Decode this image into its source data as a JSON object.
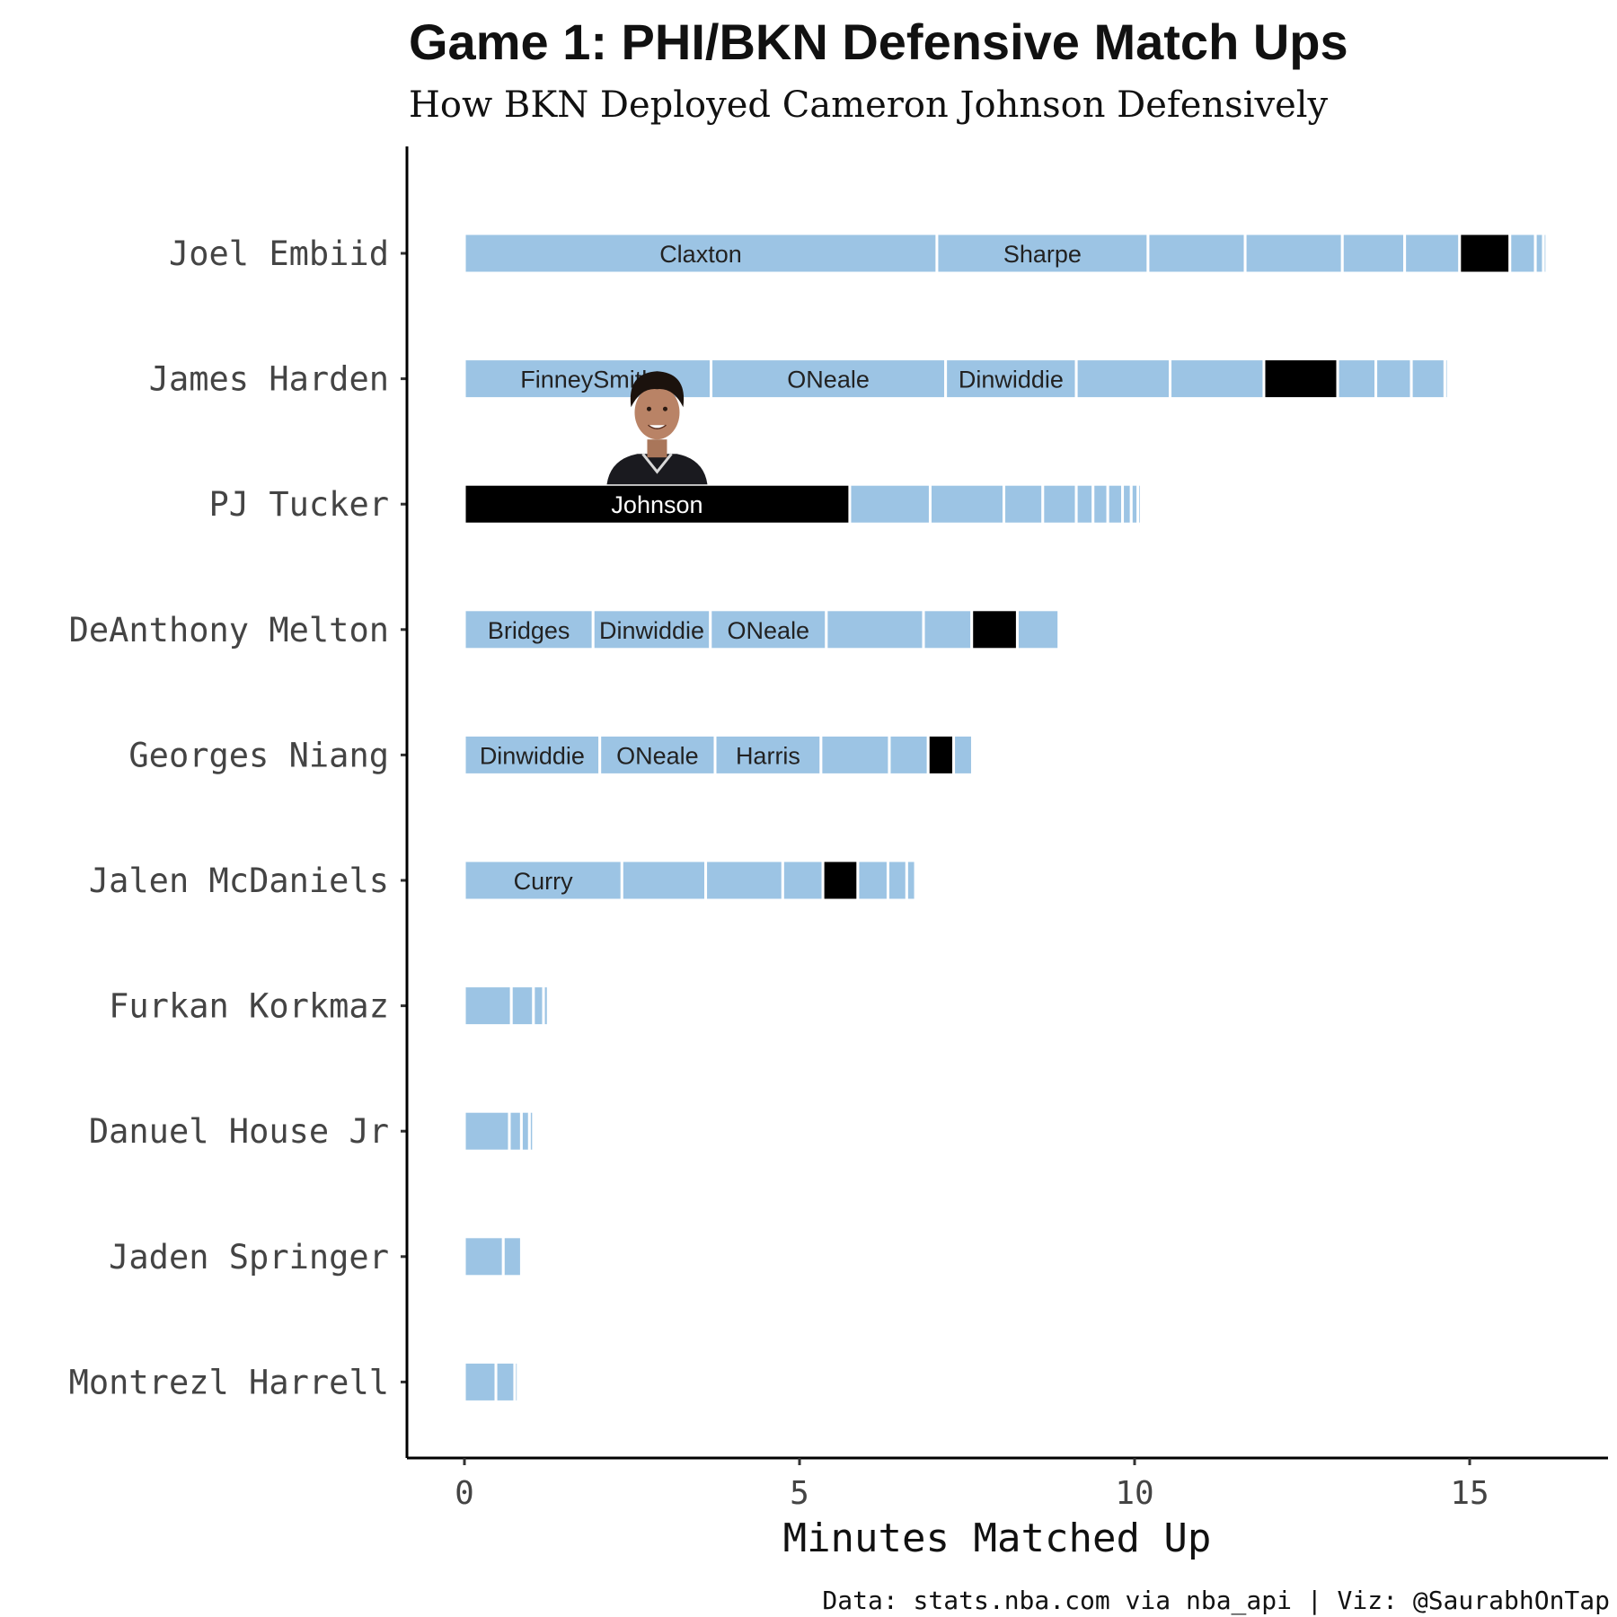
{
  "chart_data": {
    "type": "bar",
    "orientation": "horizontal-stacked",
    "title": "Game 1: PHI/BKN Defensive Match Ups",
    "subtitle": "How BKN Deployed Cameron Johnson Defensively",
    "xlabel": "Minutes Matched Up",
    "ylabel": "",
    "xlim": [
      0,
      17
    ],
    "xticks": [
      0,
      5,
      10,
      15
    ],
    "caption": "Data: stats.nba.com via nba_api | Viz: @SaurabhOnTap",
    "highlight_player": "Johnson",
    "colors": {
      "default": "#9CC4E4",
      "highlight": "#000000"
    },
    "rows": [
      {
        "player": "Joel Embiid",
        "segments": [
          {
            "label": "Claxton",
            "minutes": 7.05
          },
          {
            "label": "Sharpe",
            "minutes": 3.15
          },
          {
            "label": "",
            "minutes": 1.45
          },
          {
            "label": "",
            "minutes": 1.45
          },
          {
            "label": "",
            "minutes": 0.93
          },
          {
            "label": "",
            "minutes": 0.82
          },
          {
            "label": "Johnson",
            "minutes": 0.75,
            "highlight": true,
            "show_label": false
          },
          {
            "label": "",
            "minutes": 0.38
          },
          {
            "label": "",
            "minutes": 0.12
          },
          {
            "label": "",
            "minutes": 0.05
          }
        ]
      },
      {
        "player": "James Harden",
        "segments": [
          {
            "label": "FinneySmith",
            "minutes": 3.68
          },
          {
            "label": "ONeale",
            "minutes": 3.5
          },
          {
            "label": "Dinwiddie",
            "minutes": 1.95
          },
          {
            "label": "",
            "minutes": 1.4
          },
          {
            "label": "",
            "minutes": 1.4
          },
          {
            "label": "Johnson",
            "minutes": 1.1,
            "highlight": true,
            "show_label": false
          },
          {
            "label": "",
            "minutes": 0.57
          },
          {
            "label": "",
            "minutes": 0.53
          },
          {
            "label": "",
            "minutes": 0.5
          },
          {
            "label": "",
            "minutes": 0.05
          },
          {
            "label": "",
            "minutes": 0.04
          }
        ]
      },
      {
        "player": "PJ Tucker",
        "segments": [
          {
            "label": "Johnson",
            "minutes": 5.75,
            "highlight": true,
            "show_label": true
          },
          {
            "label": "",
            "minutes": 1.2
          },
          {
            "label": "",
            "minutes": 1.1
          },
          {
            "label": "",
            "minutes": 0.58
          },
          {
            "label": "",
            "minutes": 0.5
          },
          {
            "label": "",
            "minutes": 0.25
          },
          {
            "label": "",
            "minutes": 0.22
          },
          {
            "label": "",
            "minutes": 0.22
          },
          {
            "label": "",
            "minutes": 0.13
          },
          {
            "label": "",
            "minutes": 0.1
          },
          {
            "label": "",
            "minutes": 0.05
          }
        ]
      },
      {
        "player": "DeAnthony Melton",
        "segments": [
          {
            "label": "Bridges",
            "minutes": 1.92
          },
          {
            "label": "Dinwiddie",
            "minutes": 1.75
          },
          {
            "label": "ONeale",
            "minutes": 1.73
          },
          {
            "label": "",
            "minutes": 1.45
          },
          {
            "label": "",
            "minutes": 0.72
          },
          {
            "label": "Johnson",
            "minutes": 0.68,
            "highlight": true,
            "show_label": false
          },
          {
            "label": "",
            "minutes": 0.62
          }
        ]
      },
      {
        "player": "Georges Niang",
        "segments": [
          {
            "label": "Dinwiddie",
            "minutes": 2.02
          },
          {
            "label": "ONeale",
            "minutes": 1.72
          },
          {
            "label": "Harris",
            "minutes": 1.58
          },
          {
            "label": "",
            "minutes": 1.02
          },
          {
            "label": "",
            "minutes": 0.58
          },
          {
            "label": "Johnson",
            "minutes": 0.38,
            "highlight": true,
            "show_label": false
          },
          {
            "label": "",
            "minutes": 0.28
          }
        ]
      },
      {
        "player": "Jalen McDaniels",
        "segments": [
          {
            "label": "Curry",
            "minutes": 2.35
          },
          {
            "label": "",
            "minutes": 1.25
          },
          {
            "label": "",
            "minutes": 1.15
          },
          {
            "label": "",
            "minutes": 0.6
          },
          {
            "label": "Johnson",
            "minutes": 0.52,
            "highlight": true,
            "show_label": false
          },
          {
            "label": "",
            "minutes": 0.45
          },
          {
            "label": "",
            "minutes": 0.28
          },
          {
            "label": "",
            "minutes": 0.13
          }
        ]
      },
      {
        "player": "Furkan Korkmaz",
        "segments": [
          {
            "label": "",
            "minutes": 0.7
          },
          {
            "label": "",
            "minutes": 0.33
          },
          {
            "label": "",
            "minutes": 0.15
          },
          {
            "label": "",
            "minutes": 0.07
          }
        ]
      },
      {
        "player": "Danuel House Jr",
        "segments": [
          {
            "label": "",
            "minutes": 0.67
          },
          {
            "label": "",
            "minutes": 0.18
          },
          {
            "label": "",
            "minutes": 0.12
          },
          {
            "label": "",
            "minutes": 0.06
          }
        ]
      },
      {
        "player": "Jaden Springer",
        "segments": [
          {
            "label": "",
            "minutes": 0.58
          },
          {
            "label": "",
            "minutes": 0.27
          }
        ]
      },
      {
        "player": "Montrezl Harrell",
        "segments": [
          {
            "label": "",
            "minutes": 0.47
          },
          {
            "label": "",
            "minutes": 0.28
          },
          {
            "label": "",
            "minutes": 0.05
          }
        ]
      }
    ]
  }
}
